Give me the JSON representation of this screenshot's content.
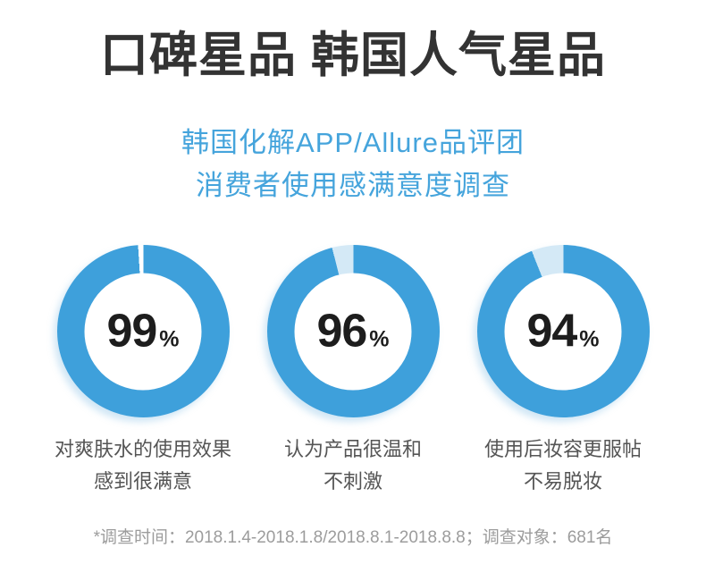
{
  "header": {
    "title": "口碑星品 韩国人气星品"
  },
  "subtitle": {
    "line1": "韩国化解APP/Allure品评团",
    "line2": "消费者使用感满意度调查"
  },
  "colors": {
    "title_text": "#333333",
    "subtitle_blue": "#45a4dc",
    "ring_blue": "#3ea0db",
    "remainder_pale_blue": "#d4e9f6",
    "percent_text": "#1d1d1d",
    "caption_gray": "#555555",
    "footnote_gray": "#9c9c9c"
  },
  "chart_data": {
    "type": "pie",
    "subtype": "donut",
    "title": "消费者使用感满意度调查",
    "unit": "%",
    "legend": "none",
    "ring_color": "#3ea0db",
    "series": [
      {
        "name": "对爽肤水的使用效果感到很满意",
        "value": 99,
        "remainder": 1,
        "remainder_color": "#ffffff",
        "caption_line1": "对爽肤水的使用效果",
        "caption_line2": "感到很满意"
      },
      {
        "name": "认为产品很温和不刺激",
        "value": 96,
        "remainder": 4,
        "remainder_color": "#d4e9f6",
        "caption_line1": "认为产品很温和",
        "caption_line2": "不刺激"
      },
      {
        "name": "使用后妆容更服帖不易脱妆",
        "value": 94,
        "remainder": 6,
        "remainder_color": "#d4e9f6",
        "caption_line1": "使用后妆容更服帖",
        "caption_line2": "不易脱妆"
      }
    ]
  },
  "footnote": {
    "text": "*调查时间：2018.1.4-2018.1.8/2018.8.1-2018.8.8；调查对象：681名"
  }
}
